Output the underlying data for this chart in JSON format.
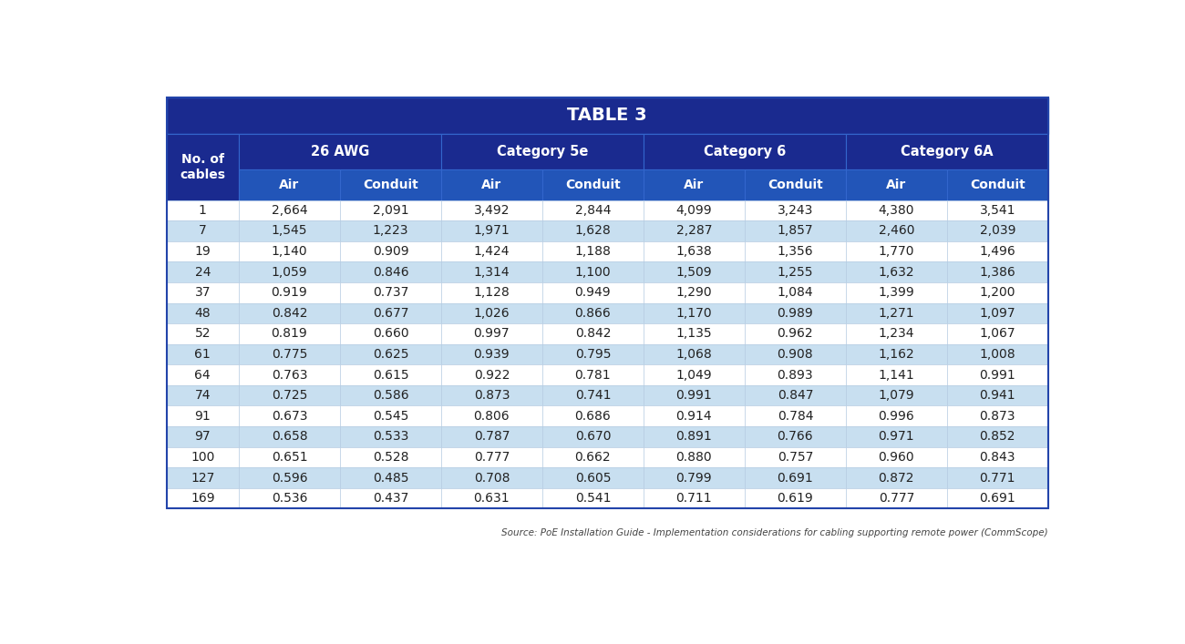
{
  "title": "TABLE 3",
  "source_text": "Source: PoE Installation Guide - Implementation considerations for cabling supporting remote power (CommScope)",
  "col_groups": [
    "26 AWG",
    "Category 5e",
    "Category 6",
    "Category 6A"
  ],
  "sub_cols": [
    "Air",
    "Conduit"
  ],
  "row_header": "No. of\ncables",
  "rows": [
    {
      "cables": "1",
      "data": [
        "2,664",
        "2,091",
        "3,492",
        "2,844",
        "4,099",
        "3,243",
        "4,380",
        "3,541"
      ]
    },
    {
      "cables": "7",
      "data": [
        "1,545",
        "1,223",
        "1,971",
        "1,628",
        "2,287",
        "1,857",
        "2,460",
        "2,039"
      ]
    },
    {
      "cables": "19",
      "data": [
        "1,140",
        "0.909",
        "1,424",
        "1,188",
        "1,638",
        "1,356",
        "1,770",
        "1,496"
      ]
    },
    {
      "cables": "24",
      "data": [
        "1,059",
        "0.846",
        "1,314",
        "1,100",
        "1,509",
        "1,255",
        "1,632",
        "1,386"
      ]
    },
    {
      "cables": "37",
      "data": [
        "0.919",
        "0.737",
        "1,128",
        "0.949",
        "1,290",
        "1,084",
        "1,399",
        "1,200"
      ]
    },
    {
      "cables": "48",
      "data": [
        "0.842",
        "0.677",
        "1,026",
        "0.866",
        "1,170",
        "0.989",
        "1,271",
        "1,097"
      ]
    },
    {
      "cables": "52",
      "data": [
        "0.819",
        "0.660",
        "0.997",
        "0.842",
        "1,135",
        "0.962",
        "1,234",
        "1,067"
      ]
    },
    {
      "cables": "61",
      "data": [
        "0.775",
        "0.625",
        "0.939",
        "0.795",
        "1,068",
        "0.908",
        "1,162",
        "1,008"
      ]
    },
    {
      "cables": "64",
      "data": [
        "0.763",
        "0.615",
        "0.922",
        "0.781",
        "1,049",
        "0.893",
        "1,141",
        "0.991"
      ]
    },
    {
      "cables": "74",
      "data": [
        "0.725",
        "0.586",
        "0.873",
        "0.741",
        "0.991",
        "0.847",
        "1,079",
        "0.941"
      ]
    },
    {
      "cables": "91",
      "data": [
        "0.673",
        "0.545",
        "0.806",
        "0.686",
        "0.914",
        "0.784",
        "0.996",
        "0.873"
      ]
    },
    {
      "cables": "97",
      "data": [
        "0.658",
        "0.533",
        "0.787",
        "0.670",
        "0.891",
        "0.766",
        "0.971",
        "0.852"
      ]
    },
    {
      "cables": "100",
      "data": [
        "0.651",
        "0.528",
        "0.777",
        "0.662",
        "0.880",
        "0.757",
        "0.960",
        "0.843"
      ]
    },
    {
      "cables": "127",
      "data": [
        "0.596",
        "0.485",
        "0.708",
        "0.605",
        "0.799",
        "0.691",
        "0.872",
        "0.771"
      ]
    },
    {
      "cables": "169",
      "data": [
        "0.536",
        "0.437",
        "0.631",
        "0.541",
        "0.711",
        "0.619",
        "0.777",
        "0.691"
      ]
    }
  ],
  "color_title_bg": "#1a2a8f",
  "color_header_dark": "#1a2a8f",
  "color_header_mid": "#1e3fa0",
  "color_subheader": "#2255b8",
  "color_row_light": "#c8dff0",
  "color_row_white": "#ffffff",
  "color_border_header": "#3366cc",
  "color_border_data": "#b0c8e0",
  "title_color": "#ffffff",
  "header_text_color": "#ffffff",
  "data_text_color": "#222222",
  "fig_bg": "#ffffff",
  "table_outer_border": "#2244aa"
}
